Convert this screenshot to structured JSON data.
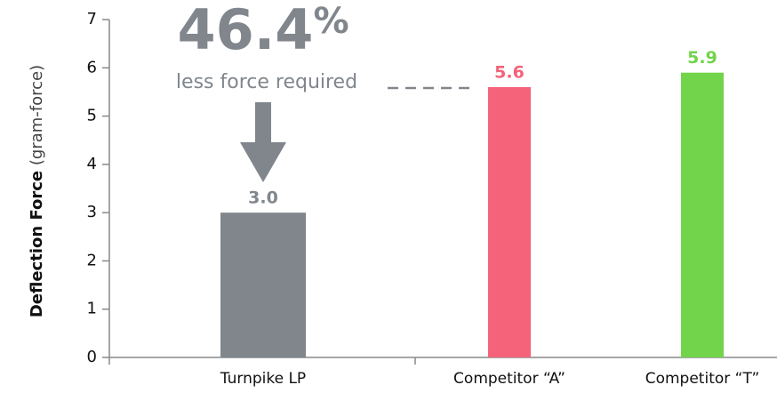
{
  "chart_data": {
    "type": "bar",
    "ylabel": "Deflection Force",
    "ylabel_unit": "(gram-force)",
    "categories": [
      "Turnpike LP",
      "Competitor “A”",
      "Competitor “T”"
    ],
    "values": [
      3.0,
      5.6,
      5.9
    ],
    "value_labels": [
      "3.0",
      "5.6",
      "5.9"
    ],
    "colors": [
      "#80868c",
      "#f4637a",
      "#72d44a"
    ],
    "ylim": [
      0,
      7
    ],
    "yticks": [
      0,
      1,
      2,
      3,
      4,
      5,
      6,
      7
    ],
    "annotation_number": "46.4",
    "annotation_unit": "%",
    "annotation_caption": "less force required"
  }
}
